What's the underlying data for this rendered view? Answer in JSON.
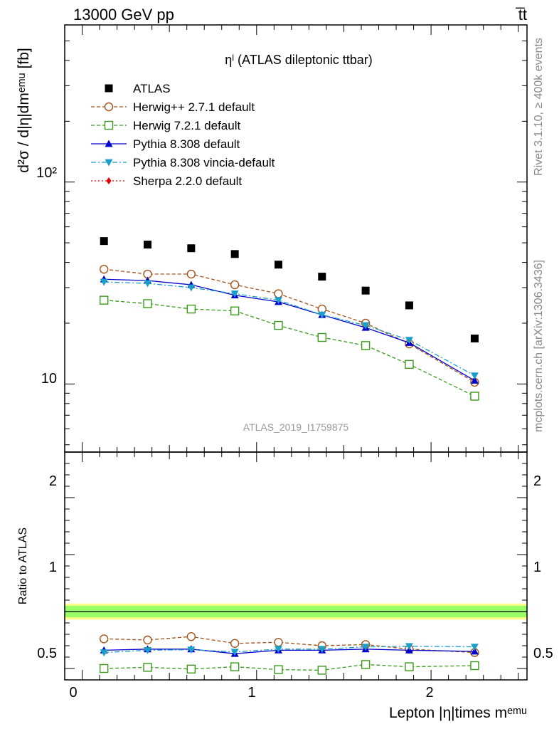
{
  "header": {
    "left": "13000 GeV pp",
    "right": "t̅t"
  },
  "side_labels": {
    "rivet": "Rivet 3.1.10, ≥ 400k events",
    "mcplots": "mcplots.cern.ch [arXiv:1306.3436]"
  },
  "watermark": "ATLAS_2019_I1759875",
  "chart_data": [
    {
      "panel": "main",
      "type": "scatter",
      "title": "ηˡ (ATLAS dileptonic ttbar)",
      "ylabel": "d²σ / d|η|dmᵉᵐᵘ [fb]",
      "yscale": "log",
      "ylim": [
        4.6,
        600
      ],
      "xlim": [
        -0.1,
        2.55
      ],
      "ytick_labels": [
        "10",
        "10²"
      ],
      "legend_position": "top-left",
      "x": [
        0.125,
        0.375,
        0.625,
        0.875,
        1.125,
        1.375,
        1.625,
        1.875,
        2.25
      ],
      "series": [
        {
          "name": "ATLAS",
          "color": "#000000",
          "marker": "square-filled",
          "line": "none",
          "values": [
            51,
            49,
            47,
            44,
            39,
            34,
            29,
            24.5,
            16.8
          ]
        },
        {
          "name": "Herwig++ 2.7.1 default",
          "color": "#a0521a",
          "marker": "circle-open",
          "line": "dashed",
          "values": [
            37,
            35,
            35,
            31,
            28,
            23.5,
            20,
            15.8,
            10.2
          ]
        },
        {
          "name": "Herwig 7.2.1 default",
          "color": "#3a9a1a",
          "marker": "square-open",
          "line": "dashed",
          "values": [
            26,
            25,
            23.5,
            23,
            19.5,
            17,
            15.5,
            12.5,
            8.7
          ]
        },
        {
          "name": "Pythia 8.308 default",
          "color": "#0000cc",
          "marker": "triangle-up",
          "line": "solid",
          "values": [
            33,
            32.5,
            31,
            27.5,
            25.5,
            22,
            19,
            16,
            10.4
          ]
        },
        {
          "name": "Pythia 8.308 vincia-default",
          "color": "#1a9fc8",
          "marker": "triangle-down",
          "line": "dashdot",
          "values": [
            32,
            31.5,
            30,
            28,
            26,
            22,
            19.5,
            16.5,
            11
          ]
        },
        {
          "name": "Sherpa 2.2.0 default",
          "color": "#e00000",
          "marker": "diamond",
          "line": "dotted",
          "values": []
        }
      ]
    },
    {
      "panel": "ratio",
      "type": "scatter",
      "ylabel": "Ratio to ATLAS",
      "xlabel": "Lepton |η|times mᵉᵐᵘ",
      "ylim": [
        0.4,
        2.4
      ],
      "xlim": [
        -0.1,
        2.55
      ],
      "ytick_labels": [
        "0.5",
        "1",
        "2"
      ],
      "xtick_labels": [
        "0",
        "1",
        "2"
      ],
      "x": [
        0.125,
        0.375,
        0.625,
        0.875,
        1.125,
        1.375,
        1.625,
        1.875,
        2.25
      ],
      "band": {
        "inner": [
          0.95,
          1.05
        ],
        "outer": [
          0.93,
          1.07
        ],
        "inner_color": "#99ff66",
        "outer_color": "#ffff88"
      },
      "series": [
        {
          "name": "Herwig++ 2.7.1 default",
          "color": "#a0521a",
          "marker": "circle-open",
          "line": "dashed",
          "values": [
            0.76,
            0.75,
            0.78,
            0.72,
            0.73,
            0.7,
            0.71,
            0.67,
            0.64
          ]
        },
        {
          "name": "Herwig 7.2.1 default",
          "color": "#3a9a1a",
          "marker": "square-open",
          "line": "dashed",
          "values": [
            0.5,
            0.51,
            0.495,
            0.515,
            0.49,
            0.485,
            0.535,
            0.515,
            0.525
          ]
        },
        {
          "name": "Pythia 8.308 default",
          "color": "#0000cc",
          "marker": "triangle-up",
          "line": "solid",
          "values": [
            0.66,
            0.67,
            0.67,
            0.63,
            0.66,
            0.66,
            0.67,
            0.66,
            0.65
          ]
        },
        {
          "name": "Pythia 8.308 vincia-default",
          "color": "#1a9fc8",
          "marker": "triangle-down",
          "line": "dashdot",
          "values": [
            0.64,
            0.66,
            0.665,
            0.645,
            0.67,
            0.67,
            0.69,
            0.695,
            0.69
          ]
        }
      ]
    }
  ]
}
